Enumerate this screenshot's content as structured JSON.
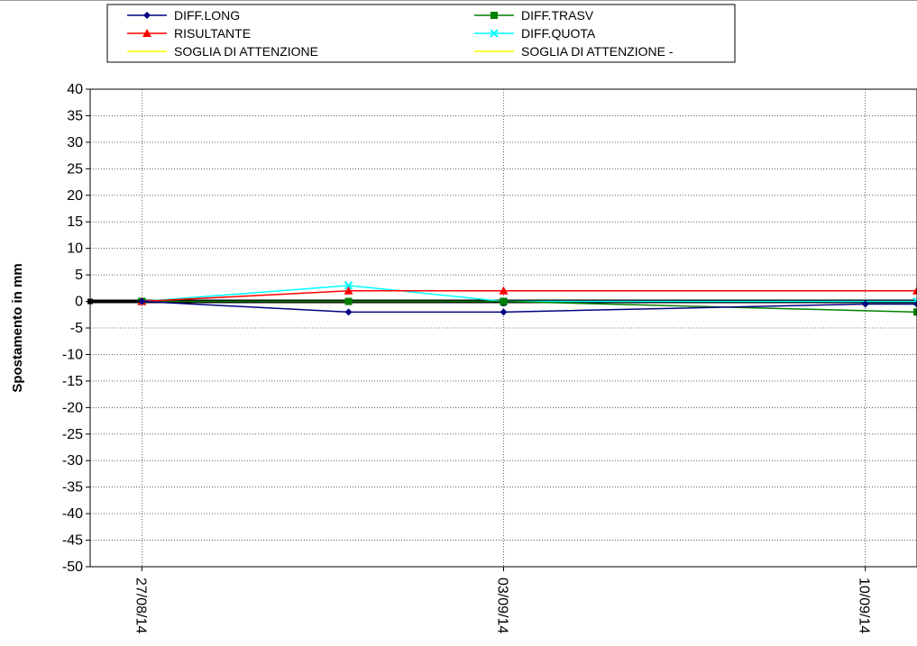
{
  "chart_data": {
    "type": "line",
    "title": "",
    "xlabel": "",
    "ylabel": "Spostamento in mm",
    "ylim": [
      -50,
      40
    ],
    "yticks": [
      40,
      35,
      30,
      25,
      20,
      15,
      10,
      5,
      0,
      -5,
      -10,
      -15,
      -20,
      -25,
      -30,
      -35,
      -40,
      -45,
      -50
    ],
    "xlim": [
      "2014-08-26",
      "2014-09-11"
    ],
    "xticks": [
      {
        "date": "2014-08-27",
        "label": "27/08/14"
      },
      {
        "date": "2014-09-03",
        "label": "03/09/14"
      },
      {
        "date": "2014-09-10",
        "label": "10/09/14"
      }
    ],
    "grid": "dotted",
    "legend_position": "top",
    "series": [
      {
        "name": "DIFF.LONG",
        "color": "#000080",
        "marker": "diamond",
        "points": [
          [
            "2014-08-27",
            0
          ],
          [
            "2014-08-31",
            -2
          ],
          [
            "2014-09-03",
            -2
          ],
          [
            "2014-09-10",
            -0.5
          ],
          [
            "2014-09-11",
            -0.5
          ]
        ]
      },
      {
        "name": "DIFF.TRASV",
        "color": "#008000",
        "marker": "square",
        "points": [
          [
            "2014-08-27",
            0
          ],
          [
            "2014-08-31",
            0
          ],
          [
            "2014-09-03",
            0
          ],
          [
            "2014-09-11",
            -2
          ]
        ]
      },
      {
        "name": "RISULTANTE",
        "color": "#ff0000",
        "marker": "triangle",
        "points": [
          [
            "2014-08-27",
            0
          ],
          [
            "2014-08-31",
            2
          ],
          [
            "2014-09-03",
            2
          ],
          [
            "2014-09-11",
            2
          ]
        ]
      },
      {
        "name": "DIFF.QUOTA",
        "color": "#00ffff",
        "marker": "x",
        "points": [
          [
            "2014-08-27",
            0
          ],
          [
            "2014-08-31",
            3
          ],
          [
            "2014-09-03",
            0
          ],
          [
            "2014-09-11",
            0
          ]
        ]
      },
      {
        "name": "SOGLIA DI ATTENZIONE",
        "color": "#ffff00",
        "marker": "none",
        "points": []
      },
      {
        "name": "SOGLIA DI ATTENZIONE -",
        "color": "#ffff00",
        "marker": "none",
        "points": []
      }
    ]
  }
}
